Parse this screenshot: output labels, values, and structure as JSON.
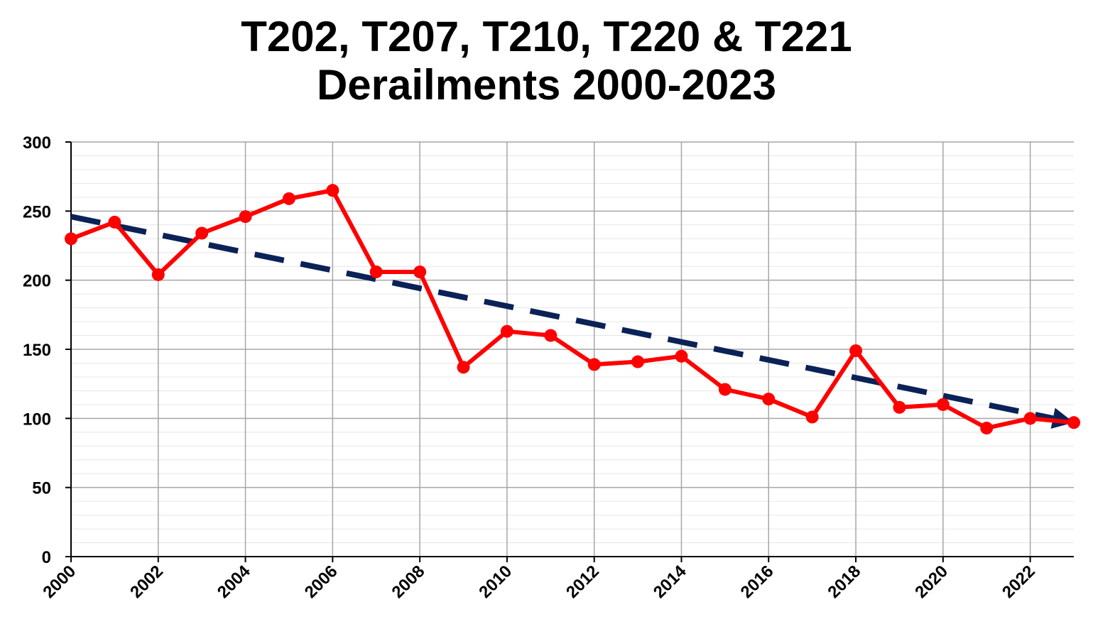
{
  "chart_data": {
    "type": "line",
    "title_lines": [
      "T202, T207, T210, T220 & T221",
      "Derailments 2000-2023"
    ],
    "x": [
      2000,
      2001,
      2002,
      2003,
      2004,
      2005,
      2006,
      2007,
      2008,
      2009,
      2010,
      2011,
      2012,
      2013,
      2014,
      2015,
      2016,
      2017,
      2018,
      2019,
      2020,
      2021,
      2022,
      2023
    ],
    "series": [
      {
        "values": [
          230,
          242,
          204,
          234,
          246,
          259,
          265,
          206,
          206,
          137,
          163,
          160,
          139,
          141,
          145,
          121,
          114,
          101,
          149,
          108,
          110,
          93,
          100,
          97
        ],
        "color": "#ff0000"
      }
    ],
    "trendline": {
      "style": "dashed",
      "color": "#0b2257",
      "start": [
        2000,
        246
      ],
      "end": [
        2023,
        97
      ],
      "arrow": true
    },
    "xlim": [
      2000,
      2023
    ],
    "ylim": [
      0,
      300
    ],
    "xticks": [
      "2000",
      "2002",
      "2004",
      "2006",
      "2008",
      "2010",
      "2012",
      "2014",
      "2016",
      "2018",
      "2020",
      "2022"
    ],
    "yticks": [
      "0",
      "50",
      "100",
      "150",
      "200",
      "250",
      "300"
    ],
    "xlabel": "",
    "ylabel": "",
    "grid": true
  }
}
